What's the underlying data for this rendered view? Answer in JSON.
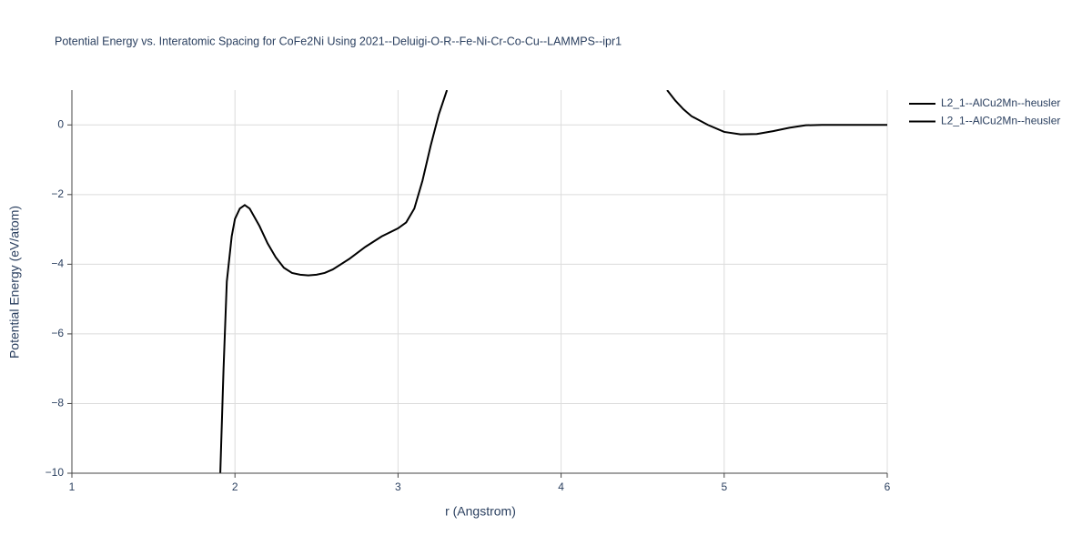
{
  "chart_data": {
    "type": "line",
    "title": "Potential Energy vs. Interatomic Spacing for CoFe2Ni Using 2021--Deluigi-O-R--Fe-Ni-Cr-Co-Cu--LAMMPS--ipr1",
    "x_label": "r (Angstrom)",
    "y_label": "Potential Energy (eV/atom)",
    "xlim": [
      1,
      6
    ],
    "ylim": [
      -10,
      1
    ],
    "xticks": [
      1,
      2,
      3,
      4,
      5,
      6
    ],
    "yticks": [
      {
        "value": -10,
        "label": "−10"
      },
      {
        "value": -8,
        "label": "−8"
      },
      {
        "value": -6,
        "label": "−6"
      },
      {
        "value": -4,
        "label": "−4"
      },
      {
        "value": -2,
        "label": "−2"
      },
      0
    ],
    "grid": true,
    "series": [
      {
        "name": "L2_1--AlCu2Mn--heusler",
        "color": "#000000",
        "x": [
          1.91,
          1.93,
          1.95,
          1.98,
          2.0,
          2.03,
          2.06,
          2.09,
          2.15,
          2.2,
          2.25,
          2.3,
          2.35,
          2.4,
          2.45,
          2.5,
          2.55,
          2.6,
          2.7,
          2.8,
          2.9,
          3.0,
          3.05,
          3.1,
          3.15,
          3.2,
          3.25,
          3.3
        ],
        "values": [
          -10,
          -7,
          -4.5,
          -3.2,
          -2.7,
          -2.4,
          -2.3,
          -2.4,
          -2.9,
          -3.4,
          -3.8,
          -4.1,
          -4.25,
          -4.3,
          -4.32,
          -4.3,
          -4.25,
          -4.15,
          -3.85,
          -3.5,
          -3.2,
          -2.97,
          -2.8,
          -2.4,
          -1.6,
          -0.6,
          0.3,
          1.0
        ]
      },
      {
        "name": "L2_1--AlCu2Mn--heusler",
        "color": "#000000",
        "x": [
          4.65,
          4.7,
          4.75,
          4.8,
          4.9,
          5.0,
          5.1,
          5.2,
          5.3,
          5.4,
          5.5,
          5.6,
          5.8,
          6.0
        ],
        "values": [
          1.0,
          0.7,
          0.45,
          0.25,
          0.0,
          -0.2,
          -0.27,
          -0.26,
          -0.18,
          -0.08,
          -0.01,
          0.0,
          0.0,
          0.0
        ]
      }
    ]
  }
}
